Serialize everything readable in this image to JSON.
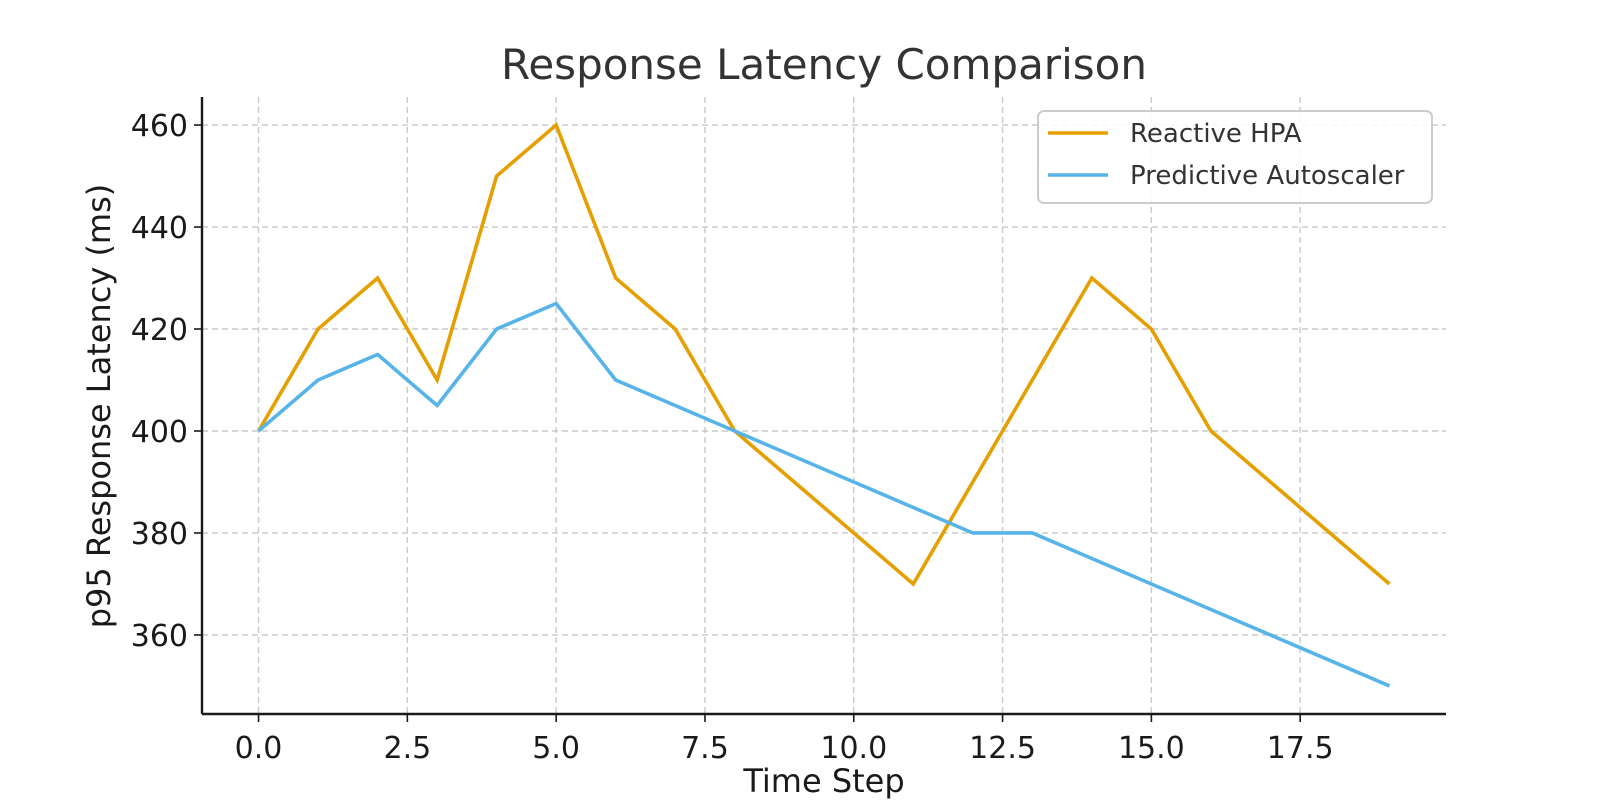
{
  "chart_data": {
    "type": "line",
    "title": "Response Latency Comparison",
    "xlabel": "Time Step",
    "ylabel": "p95 Response Latency (ms)",
    "xlim": [
      -0.95,
      19.95
    ],
    "ylim": [
      344.5,
      465.5
    ],
    "xticks": [
      0.0,
      2.5,
      5.0,
      7.5,
      10.0,
      12.5,
      15.0,
      17.5
    ],
    "xtick_labels": [
      "0.0",
      "2.5",
      "5.0",
      "7.5",
      "10.0",
      "12.5",
      "15.0",
      "17.5"
    ],
    "yticks": [
      360,
      380,
      400,
      420,
      440,
      460
    ],
    "ytick_labels": [
      "360",
      "380",
      "400",
      "420",
      "440",
      "460"
    ],
    "grid": true,
    "legend_position": "top-right",
    "x": [
      0,
      1,
      2,
      3,
      4,
      5,
      6,
      7,
      8,
      9,
      10,
      11,
      12,
      13,
      14,
      15,
      16,
      17,
      18,
      19
    ],
    "series": [
      {
        "name": "Reactive HPA",
        "color": "#E69F00",
        "values": [
          400,
          420,
          430,
          410,
          450,
          460,
          430,
          420,
          400,
          390,
          380,
          370,
          390,
          410,
          430,
          420,
          400,
          390,
          380,
          370
        ]
      },
      {
        "name": "Predictive Autoscaler",
        "color": "#56B4E9",
        "values": [
          400,
          410,
          415,
          405,
          420,
          425,
          410,
          405,
          400,
          395,
          390,
          385,
          380,
          380,
          375,
          370,
          365,
          360,
          355,
          350
        ]
      }
    ]
  }
}
